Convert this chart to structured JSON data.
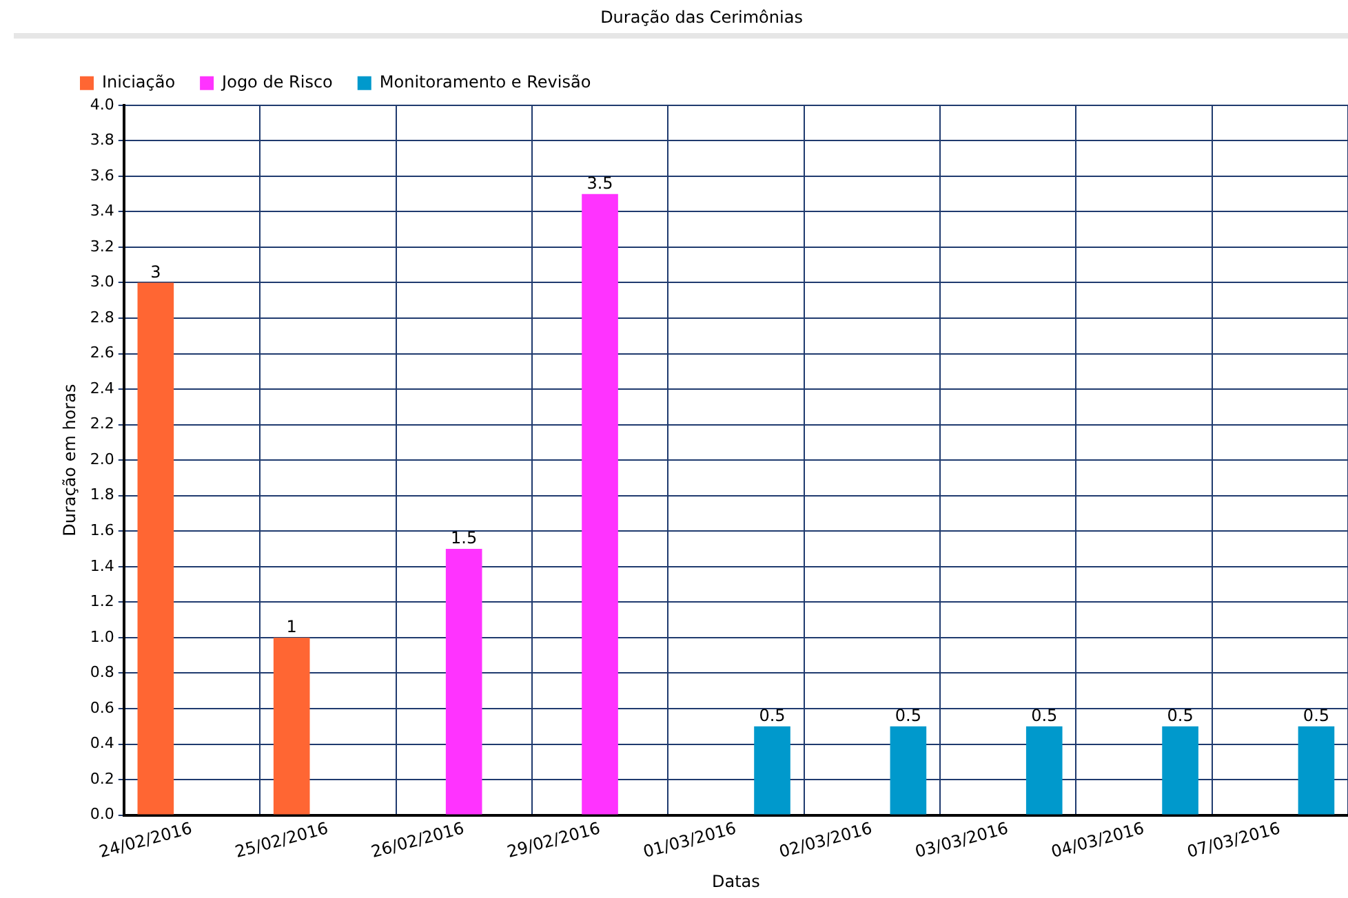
{
  "chart_data": {
    "type": "bar",
    "title": "Duração das Cerimônias",
    "xlabel": "Datas",
    "ylabel": "Duração em horas",
    "categories": [
      "24/02/2016",
      "25/02/2016",
      "26/02/2016",
      "29/02/2016",
      "01/03/2016",
      "02/03/2016",
      "03/03/2016",
      "04/03/2016",
      "07/03/2016"
    ],
    "series": [
      {
        "name": "Iniciação",
        "color": "#ff6633",
        "values": [
          3,
          1,
          null,
          null,
          null,
          null,
          null,
          null,
          null
        ]
      },
      {
        "name": "Jogo de Risco",
        "color": "#ff33ff",
        "values": [
          null,
          null,
          1.5,
          3.5,
          null,
          null,
          null,
          null,
          null
        ]
      },
      {
        "name": "Monitoramento e Revisão",
        "color": "#0099cc",
        "values": [
          null,
          null,
          null,
          null,
          0.5,
          0.5,
          0.5,
          0.5,
          0.5
        ]
      }
    ],
    "ylim": [
      0,
      4
    ],
    "yticks": [
      {
        "value": 0,
        "label": "0.0"
      },
      {
        "value": 0.2,
        "label": "0.2"
      },
      {
        "value": 0.4,
        "label": "0.4"
      },
      {
        "value": 0.6,
        "label": "0.6"
      },
      {
        "value": 0.8,
        "label": "0.8"
      },
      {
        "value": 1,
        "label": "1.0"
      },
      {
        "value": 1.2,
        "label": "1.2"
      },
      {
        "value": 1.4,
        "label": "1.4"
      },
      {
        "value": 1.6,
        "label": "1.6"
      },
      {
        "value": 1.8,
        "label": "1.8"
      },
      {
        "value": 2,
        "label": "2.0"
      },
      {
        "value": 2.2,
        "label": "2.2"
      },
      {
        "value": 2.4,
        "label": "2.4"
      },
      {
        "value": 2.6,
        "label": "2.6"
      },
      {
        "value": 2.8,
        "label": "2.8"
      },
      {
        "value": 3,
        "label": "3.0"
      },
      {
        "value": 3.2,
        "label": "3.2"
      },
      {
        "value": 3.4,
        "label": "3.4"
      },
      {
        "value": 3.6,
        "label": "3.6"
      },
      {
        "value": 3.8,
        "label": "3.8"
      },
      {
        "value": 4,
        "label": "4.0"
      }
    ],
    "grid": true,
    "legend": "top left",
    "data_labels": true
  }
}
